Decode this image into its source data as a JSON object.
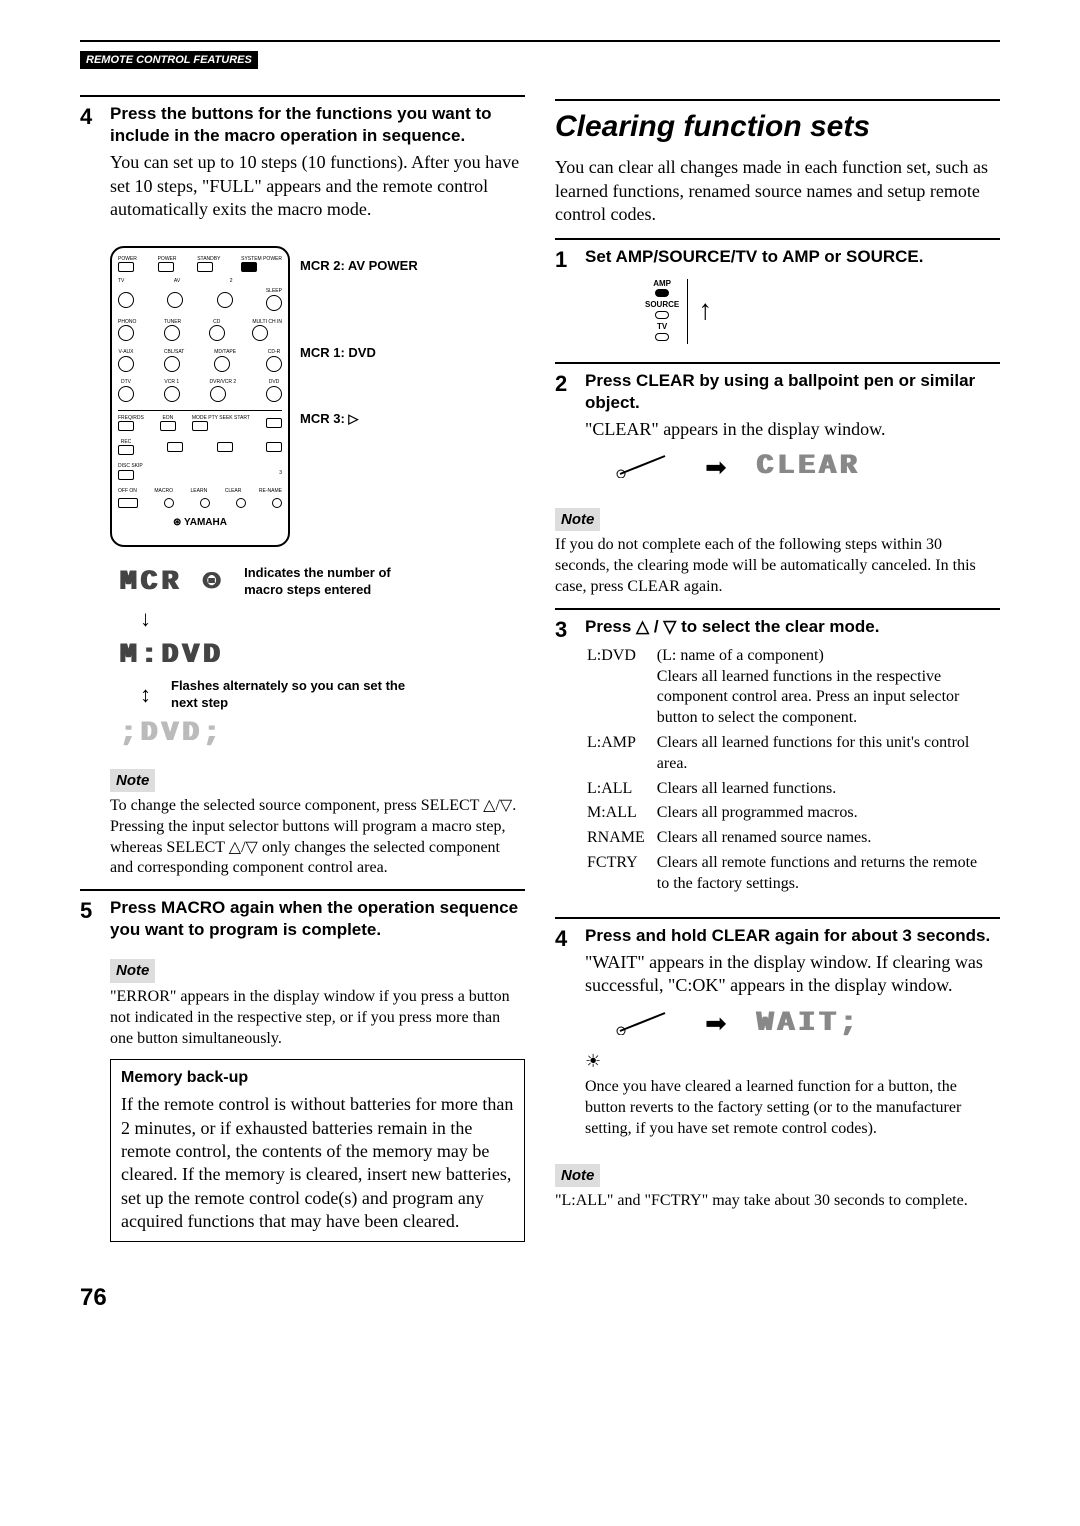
{
  "header": {
    "tag": "REMOTE CONTROL FEATURES"
  },
  "left": {
    "step4": {
      "num": "4",
      "head": "Press the buttons for the functions you want to include in the macro operation in sequence.",
      "text": "You can set up to 10 steps (10 functions). After you have set 10 steps, \"FULL\" appears and the remote control automatically exits the macro mode."
    },
    "remote_labels": {
      "l1": "MCR 2: AV POWER",
      "l2": "MCR 1: DVD",
      "l3": "MCR 3: ▷"
    },
    "remote_text": {
      "row1": [
        "POWER",
        "POWER",
        "STANDBY",
        "SYSTEM POWER"
      ],
      "row1b": [
        "TV",
        "AV",
        "",
        " "
      ],
      "row2": [
        "",
        "",
        "",
        "SLEEP"
      ],
      "row3": [
        "PHONO",
        "TUNER",
        "CD",
        "MULTI CH IN"
      ],
      "row4": [
        "V-AUX",
        "CBL/SAT",
        "MD/TAPE",
        "CD-R"
      ],
      "row5": [
        "DTV",
        "VCR 1",
        "DVR/VCR 2",
        "DVD"
      ],
      "row6": [
        "FREQ/RDS",
        "EON",
        "MODE PTY SEEK START"
      ],
      "row7": [
        "REC",
        "",
        "",
        ""
      ],
      "row8": [
        "DISC SKIP",
        "",
        "",
        ""
      ],
      "row9": [
        "OFF   ON",
        "MACRO",
        "LEARN",
        "CLEAR",
        "RE-NAME"
      ],
      "brand": "YAMAHA"
    },
    "macro_disp": {
      "line1": "MCR ⊙",
      "annot1": "Indicates the number of macro steps entered",
      "line2": "M:DVD",
      "annot2": "Flashes alternately so you can set the next step",
      "line3": ";DVD;"
    },
    "note1": {
      "label": "Note",
      "text": "To change the selected source component, press SELECT △/▽. Pressing the input selector buttons will program a macro step, whereas SELECT △/▽ only changes the selected component and corresponding component control area."
    },
    "step5": {
      "num": "5",
      "head": "Press MACRO again when the operation sequence you want to program is complete."
    },
    "note2": {
      "label": "Note",
      "text": "\"ERROR\" appears in the display window if you press a button not indicated in the respective step, or if you press more than one button simultaneously."
    },
    "memory": {
      "title": "Memory back-up",
      "text": "If the remote control is without batteries for more than 2 minutes, or if exhausted batteries remain in the remote control, the contents of the memory may be cleared. If the memory is cleared, insert new batteries, set up the remote control code(s) and program any acquired functions that may have been cleared."
    }
  },
  "right": {
    "title": "Clearing function sets",
    "intro": "You can clear all changes made in each function set, such as learned functions, renamed source names and setup remote control codes.",
    "step1": {
      "num": "1",
      "head": "Set AMP/SOURCE/TV to AMP or SOURCE."
    },
    "switch_labels": {
      "a": "AMP",
      "b": "SOURCE",
      "c": "TV"
    },
    "step2": {
      "num": "2",
      "head": "Press CLEAR by using a ballpoint pen or similar object.",
      "text": "\"CLEAR\" appears in the display window."
    },
    "pen_label": "CLEAR",
    "clear_disp": "CLEAR",
    "note1": {
      "label": "Note",
      "text": "If you do not complete each of the following steps within 30 seconds, the clearing mode will be automatically canceled. In this case, press CLEAR again."
    },
    "step3": {
      "num": "3",
      "head": "Press △ / ▽ to select the clear mode."
    },
    "modes": [
      {
        "k": "L:DVD",
        "v": "(L: name of a component)\nClears all learned functions in the respective component control area. Press an input selector button to select the component."
      },
      {
        "k": "L:AMP",
        "v": "Clears all learned functions for this unit's control area."
      },
      {
        "k": "L:ALL",
        "v": "Clears all learned functions."
      },
      {
        "k": "M:ALL",
        "v": "Clears all programmed macros."
      },
      {
        "k": "RNAME",
        "v": "Clears all renamed source names."
      },
      {
        "k": "FCTRY",
        "v": "Clears all remote functions and returns the remote to the factory settings."
      }
    ],
    "step4": {
      "num": "4",
      "head": "Press and hold CLEAR again for about 3 seconds.",
      "text": "\"WAIT\" appears in the display window. If clearing was successful, \"C:OK\" appears in the display window."
    },
    "wait_disp": "WAIT;",
    "tip_text": "Once you have cleared a learned function for a button, the button reverts to the factory setting (or to the manufacturer setting, if you have set remote control codes).",
    "note2": {
      "label": "Note",
      "text": "\"L:ALL\" and \"FCTRY\" may take about 30 seconds to complete."
    }
  },
  "page_num": "76"
}
